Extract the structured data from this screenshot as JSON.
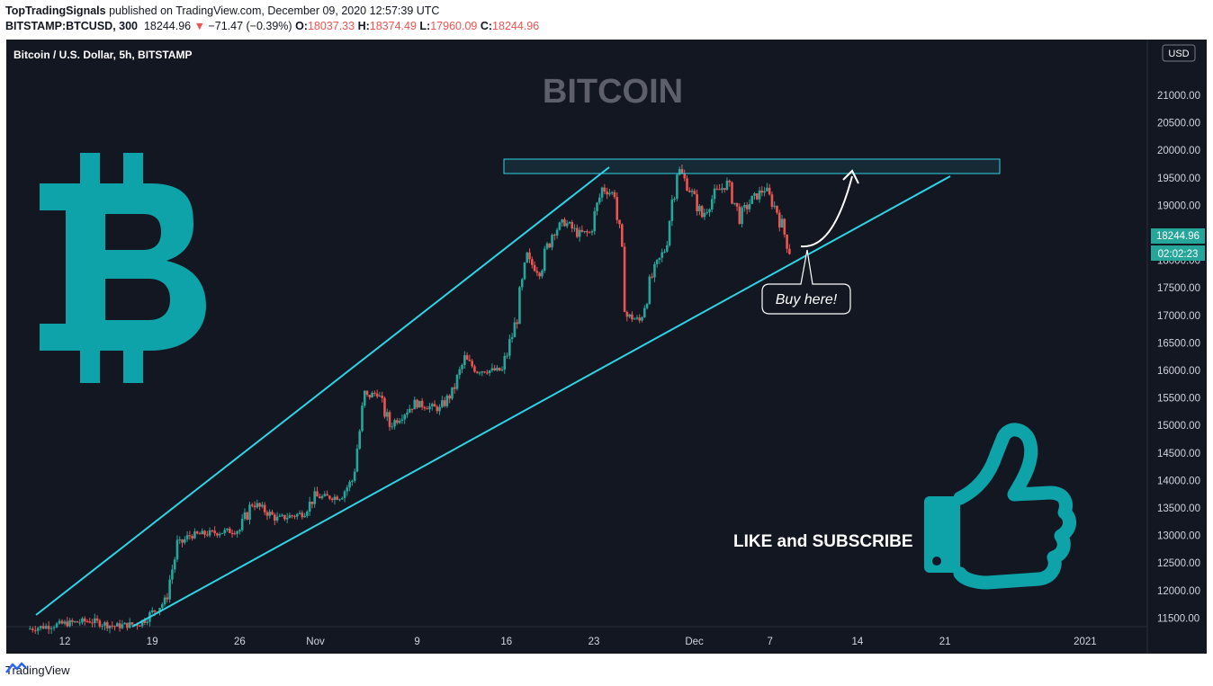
{
  "header": {
    "publisher": "TopTradingSignals",
    "published_text": "published on TradingView.com, December 09, 2020 12:57:39 UTC",
    "symbol": "BITSTAMP:BTCUSD, 300",
    "last": "18244.96",
    "change": "−71.47 (−0.39%)",
    "open_label": "O:",
    "open": "18037.33",
    "high_label": "H:",
    "high": "18374.49",
    "low_label": "L:",
    "low": "17960.09",
    "close_label": "C:",
    "close": "18244.96"
  },
  "chart": {
    "pane_title": "Bitcoin / U.S. Dollar, 5h, BITSTAMP",
    "watermark": "BITCOIN",
    "currency_button": "USD",
    "price_tag": "18244.96",
    "countdown_tag": "02:02:23",
    "callout": "Buy here!",
    "cta": "LIKE and SUBSCRIBE",
    "colors": {
      "background": "#131722",
      "up": "#26a69a",
      "down": "#ef5350",
      "trendline": "#2dd5e6",
      "logo": "#0da3a8",
      "price_tag": "#26a69a"
    }
  },
  "chart_data": {
    "type": "candlestick",
    "symbol": "BITSTAMP:BTCUSD",
    "interval": "5h",
    "y_ticks": [
      11500,
      12000,
      12500,
      13000,
      13500,
      14000,
      14500,
      15000,
      15500,
      16000,
      16500,
      17000,
      17500,
      18000,
      18500,
      19000,
      19500,
      20000,
      20500,
      21000
    ],
    "y_tick_labels": [
      "11500.00",
      "12000.00",
      "12500.00",
      "13000.00",
      "13500.00",
      "14000.00",
      "14500.00",
      "15000.00",
      "15500.00",
      "16000.00",
      "16500.00",
      "17000.00",
      "17500.00",
      "18000.00",
      "18500.00",
      "19000.00",
      "19500.00",
      "20000.00",
      "20500.00",
      "21000.00"
    ],
    "x_tick_labels": [
      "12",
      "19",
      "26",
      "Nov",
      "9",
      "16",
      "23",
      "Dec",
      "7",
      "14",
      "21",
      "2021"
    ],
    "price_path": [
      [
        "2020-10-09",
        11300
      ],
      [
        "2020-10-12",
        11400
      ],
      [
        "2020-10-14",
        11450
      ],
      [
        "2020-10-16",
        11350
      ],
      [
        "2020-10-18",
        11400
      ],
      [
        "2020-10-20",
        11800
      ],
      [
        "2020-10-21",
        12800
      ],
      [
        "2020-10-22",
        13000
      ],
      [
        "2020-10-24",
        13050
      ],
      [
        "2020-10-26",
        13100
      ],
      [
        "2020-10-27",
        13600
      ],
      [
        "2020-10-29",
        13300
      ],
      [
        "2020-10-31",
        13400
      ],
      [
        "2020-11-01",
        13700
      ],
      [
        "2020-11-03",
        13700
      ],
      [
        "2020-11-04",
        14000
      ],
      [
        "2020-11-05",
        15500
      ],
      [
        "2020-11-06",
        15600
      ],
      [
        "2020-11-07",
        15000
      ],
      [
        "2020-11-09",
        15400
      ],
      [
        "2020-11-11",
        15300
      ],
      [
        "2020-11-12",
        15600
      ],
      [
        "2020-11-13",
        16200
      ],
      [
        "2020-11-14",
        16000
      ],
      [
        "2020-11-16",
        16000
      ],
      [
        "2020-11-17",
        16800
      ],
      [
        "2020-11-18",
        18000
      ],
      [
        "2020-11-19",
        17800
      ],
      [
        "2020-11-20",
        18500
      ],
      [
        "2020-11-21",
        18700
      ],
      [
        "2020-11-22",
        18500
      ],
      [
        "2020-11-23",
        18500
      ],
      [
        "2020-11-24",
        19300
      ],
      [
        "2020-11-25",
        19200
      ],
      [
        "2020-11-26",
        17000
      ],
      [
        "2020-11-27",
        16900
      ],
      [
        "2020-11-28",
        17700
      ],
      [
        "2020-11-29",
        18200
      ],
      [
        "2020-11-30",
        19700
      ],
      [
        "2020-12-01",
        19300
      ],
      [
        "2020-12-02",
        18800
      ],
      [
        "2020-12-03",
        19200
      ],
      [
        "2020-12-04",
        19400
      ],
      [
        "2020-12-05",
        18800
      ],
      [
        "2020-12-06",
        19100
      ],
      [
        "2020-12-07",
        19300
      ],
      [
        "2020-12-08",
        18900
      ],
      [
        "2020-12-09",
        18200
      ]
    ],
    "annotations": [
      {
        "type": "horizontal-zone",
        "from": 19400,
        "to": 19650
      },
      {
        "type": "rising-wedge-upper",
        "points": [
          [
            "2020-10-09",
            11350
          ],
          [
            "2020-11-24",
            19500
          ]
        ]
      },
      {
        "type": "rising-wedge-lower",
        "points": [
          [
            "2020-10-16",
            11200
          ],
          [
            "2020-12-21",
            19300
          ]
        ]
      },
      {
        "type": "arrow",
        "text": "Buy here!"
      }
    ]
  }
}
